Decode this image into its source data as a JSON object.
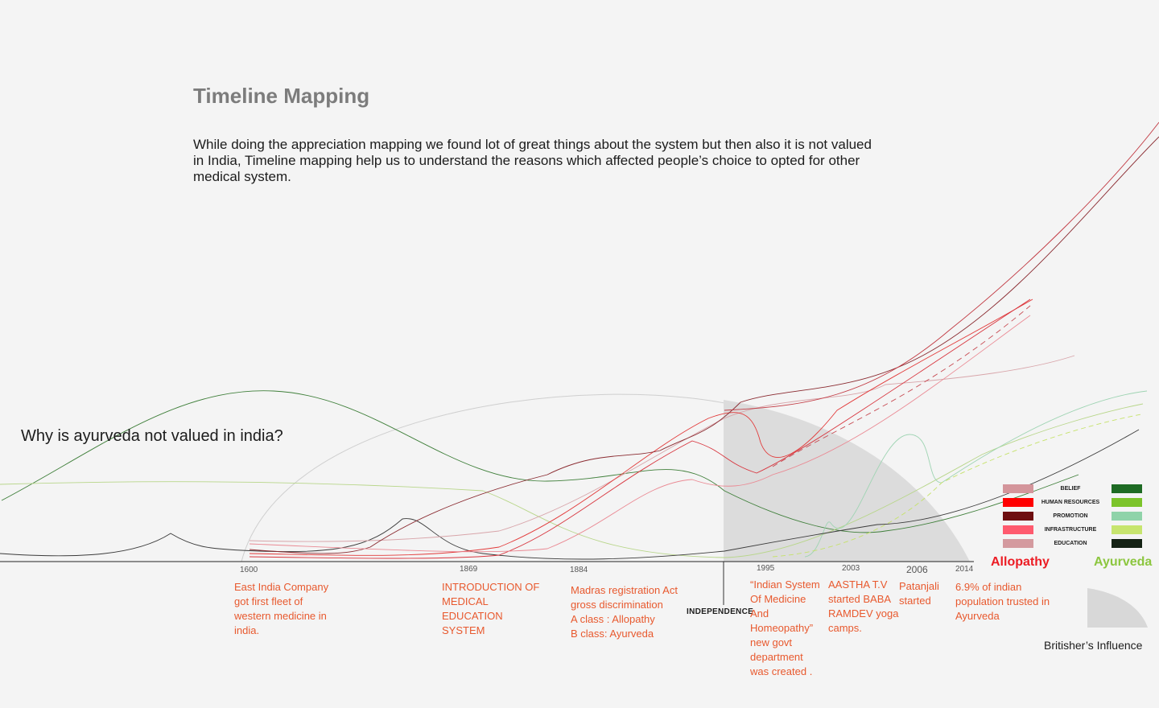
{
  "header": {
    "title": "Timeline Mapping",
    "intro": "While doing the appreciation mapping we found lot of great things about the system but then also it is not valued in India, Timeline mapping help us to understand the reasons which affected people’s choice to opted for other medical system."
  },
  "question": "Why is ayurveda not valued in india?",
  "chart_data": {
    "type": "line",
    "title": "Timeline Mapping",
    "xlabel": "",
    "ylabel": "",
    "x_ticks": [
      "1600",
      "1869",
      "1884",
      "1995",
      "2003",
      "2006",
      "2014"
    ],
    "marker_label": "INDEPENDENCE",
    "events": [
      {
        "year": "1600",
        "text": [
          "East India Company",
          "got first fleet of",
          "western medicine in",
          "india."
        ]
      },
      {
        "year": "1869",
        "text": [
          "INTRODUCTION OF",
          "MEDICAL",
          "EDUCATION",
          "SYSTEM"
        ]
      },
      {
        "year": "1884",
        "text": [
          "Madras registration Act",
          "gross discrimination",
          "A class : Allopathy",
          "B class: Ayurveda"
        ]
      },
      {
        "year": "1995",
        "text": [
          "“Indian System",
          "Of Medicine",
          "And",
          "Homeopathy”",
          "new govt",
          "department",
          "was created ."
        ]
      },
      {
        "year": "2003",
        "text": [
          "AASTHA T.V",
          "started BABA",
          "RAMDEV yoga",
          "camps."
        ]
      },
      {
        "year": "2006",
        "text": [
          "Patanjali",
          "started"
        ]
      },
      {
        "year": "2014",
        "text": [
          "6.9% of indian",
          "population trusted in",
          "Ayurveda"
        ]
      }
    ],
    "legend_groups": [
      {
        "name": "Allopathy",
        "color": "#ec1c24"
      },
      {
        "name": "Ayurveda",
        "color": "#8cc63f"
      }
    ],
    "legend_factors": [
      {
        "factor": "BELIEF",
        "allopathy_color": "#d4959b",
        "ayurveda_color": "#1e6b24"
      },
      {
        "factor": "HUMAN RESOURCES",
        "allopathy_color": "#ff0000",
        "ayurveda_color": "#7cc42a"
      },
      {
        "factor": "PROMOTION",
        "allopathy_color": "#6e0e10",
        "ayurveda_color": "#8fd3a9"
      },
      {
        "factor": "INFRASTRUCTURE",
        "allopathy_color": "#ff5a6e",
        "ayurveda_color": "#c7e56e"
      },
      {
        "factor": "EDUCATION",
        "allopathy_color": "#d49a9f",
        "ayurveda_color": "#142214"
      }
    ],
    "shaded_region_label": "Britisher’s Influence",
    "shaded_region_color": "#d8d8d8"
  }
}
